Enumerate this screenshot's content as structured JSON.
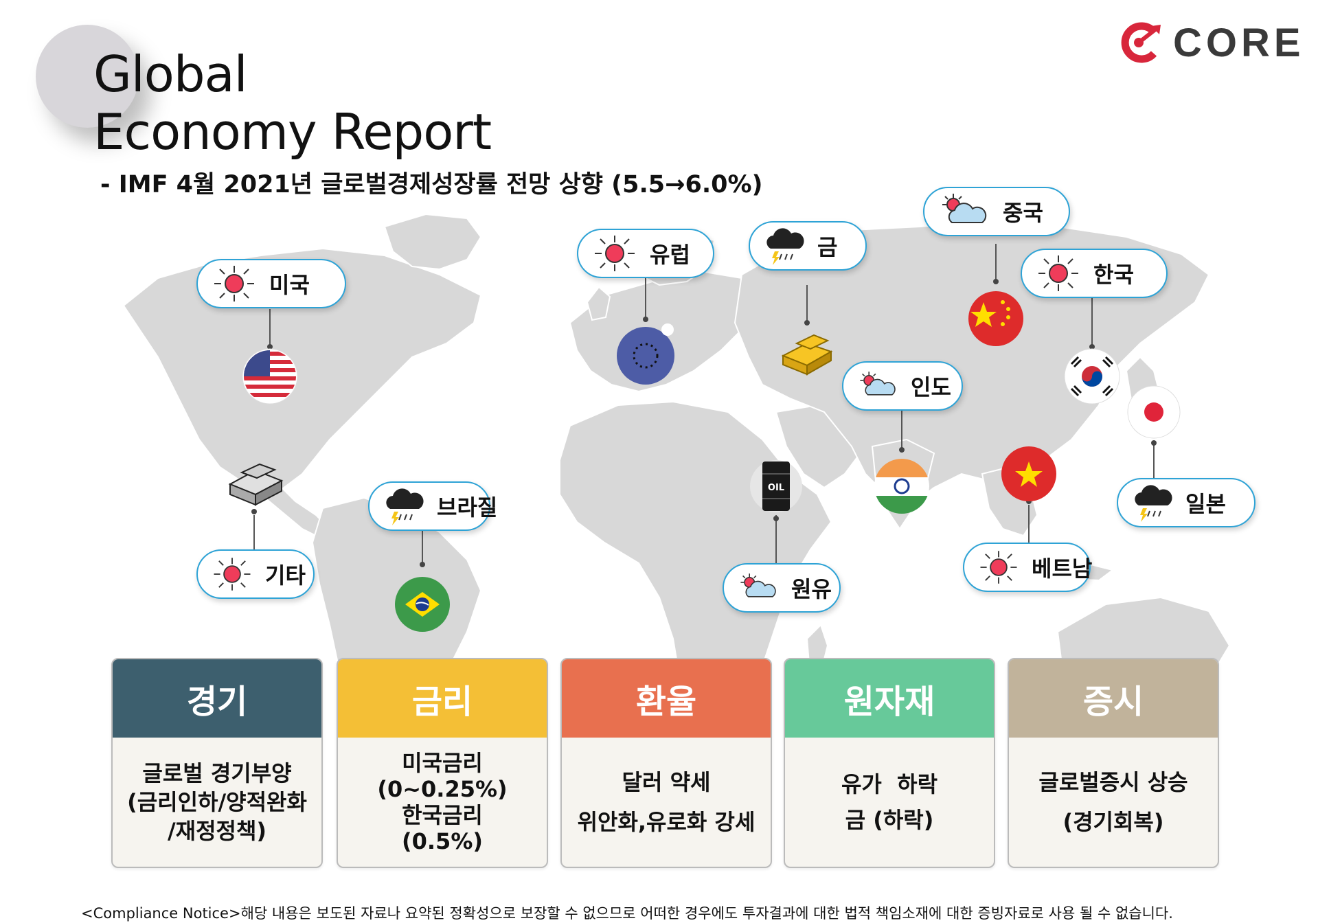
{
  "header": {
    "title_line1": "Global",
    "title_line2": "Economy Report",
    "subtitle": "- IMF 4월 2021년 글로벌경제성장률 전망 상향 (5.5→6.0%)"
  },
  "logo": {
    "text": "CORE",
    "color": "#d8263b"
  },
  "map_labels": [
    {
      "label": "미국",
      "icon": "sun-icon"
    },
    {
      "label": "유럽",
      "icon": "sun-icon"
    },
    {
      "label": "금",
      "icon": "storm-cloud-icon"
    },
    {
      "label": "중국",
      "icon": "partly-cloudy-icon"
    },
    {
      "label": "한국",
      "icon": "sun-icon"
    },
    {
      "label": "인도",
      "icon": "partly-cloudy-icon"
    },
    {
      "label": "브라질",
      "icon": "storm-cloud-icon"
    },
    {
      "label": "기타",
      "icon": "sun-icon"
    },
    {
      "label": "원유",
      "icon": "partly-cloudy-icon"
    },
    {
      "label": "베트남",
      "icon": "sun-icon"
    },
    {
      "label": "일본",
      "icon": "storm-cloud-icon"
    }
  ],
  "markers": {
    "oil_label": "OIL"
  },
  "cards": [
    {
      "title": "경기",
      "color": "#3d5f6e",
      "lines": [
        "글로벌 경기부양",
        "(금리인하/양적완화",
        "/재정정책)"
      ]
    },
    {
      "title": "금리",
      "color": "#f4bf36",
      "lines": [
        "미국금리",
        "(0~0.25%)",
        "한국금리",
        "(0.5%)"
      ]
    },
    {
      "title": "환율",
      "color": "#e8704f",
      "lines": [
        "달러 약세",
        "위안화,유로화 강세"
      ]
    },
    {
      "title": "원자재",
      "color": "#67c99a",
      "lines": [
        "유가  하락",
        "금 (하락)"
      ]
    },
    {
      "title": "증시",
      "color": "#c1b39b",
      "lines": [
        "글로벌증시 상승",
        "(경기회복)"
      ]
    }
  ],
  "notice": "<Compliance Notice>해당 내용은 보도된 자료나 요약된 정확성으로 보장할 수 없으므로 어떠한 경우에도 투자결과에 대한 법적 책임소재에 대한 증빙자료로 사용 될 수 없습니다."
}
